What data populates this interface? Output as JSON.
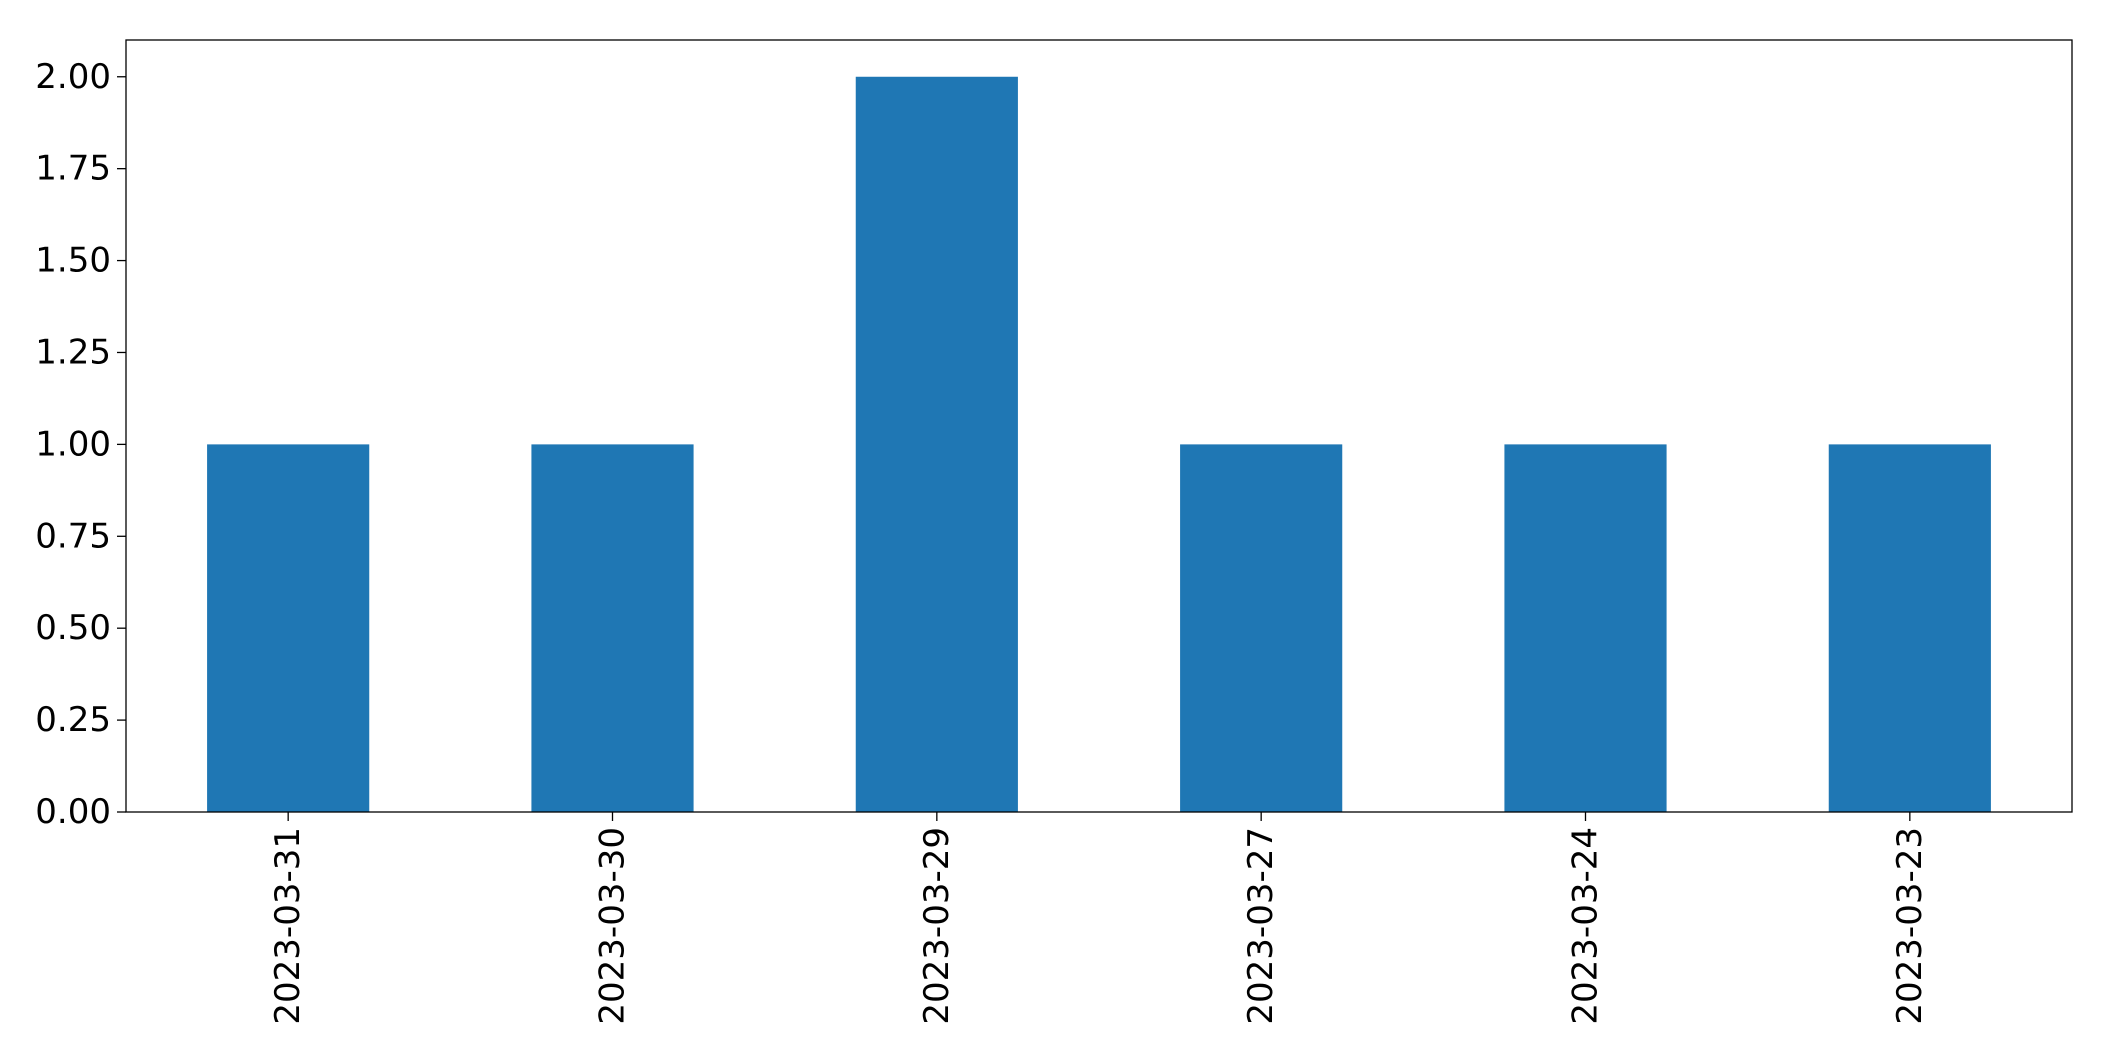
{
  "chart_data": {
    "type": "bar",
    "title": "",
    "xlabel": "",
    "ylabel": "",
    "categories": [
      "2023-03-31",
      "2023-03-30",
      "2023-03-29",
      "2023-03-27",
      "2023-03-24",
      "2023-03-23"
    ],
    "values": [
      1,
      1,
      2,
      1,
      1,
      1
    ],
    "ylim": [
      0,
      2.1
    ],
    "yticks": [
      "0.00",
      "0.25",
      "0.50",
      "0.75",
      "1.00",
      "1.25",
      "1.50",
      "1.75",
      "2.00"
    ],
    "grid": false,
    "legend": "none",
    "colors": {
      "bar": "#1f77b4"
    }
  }
}
